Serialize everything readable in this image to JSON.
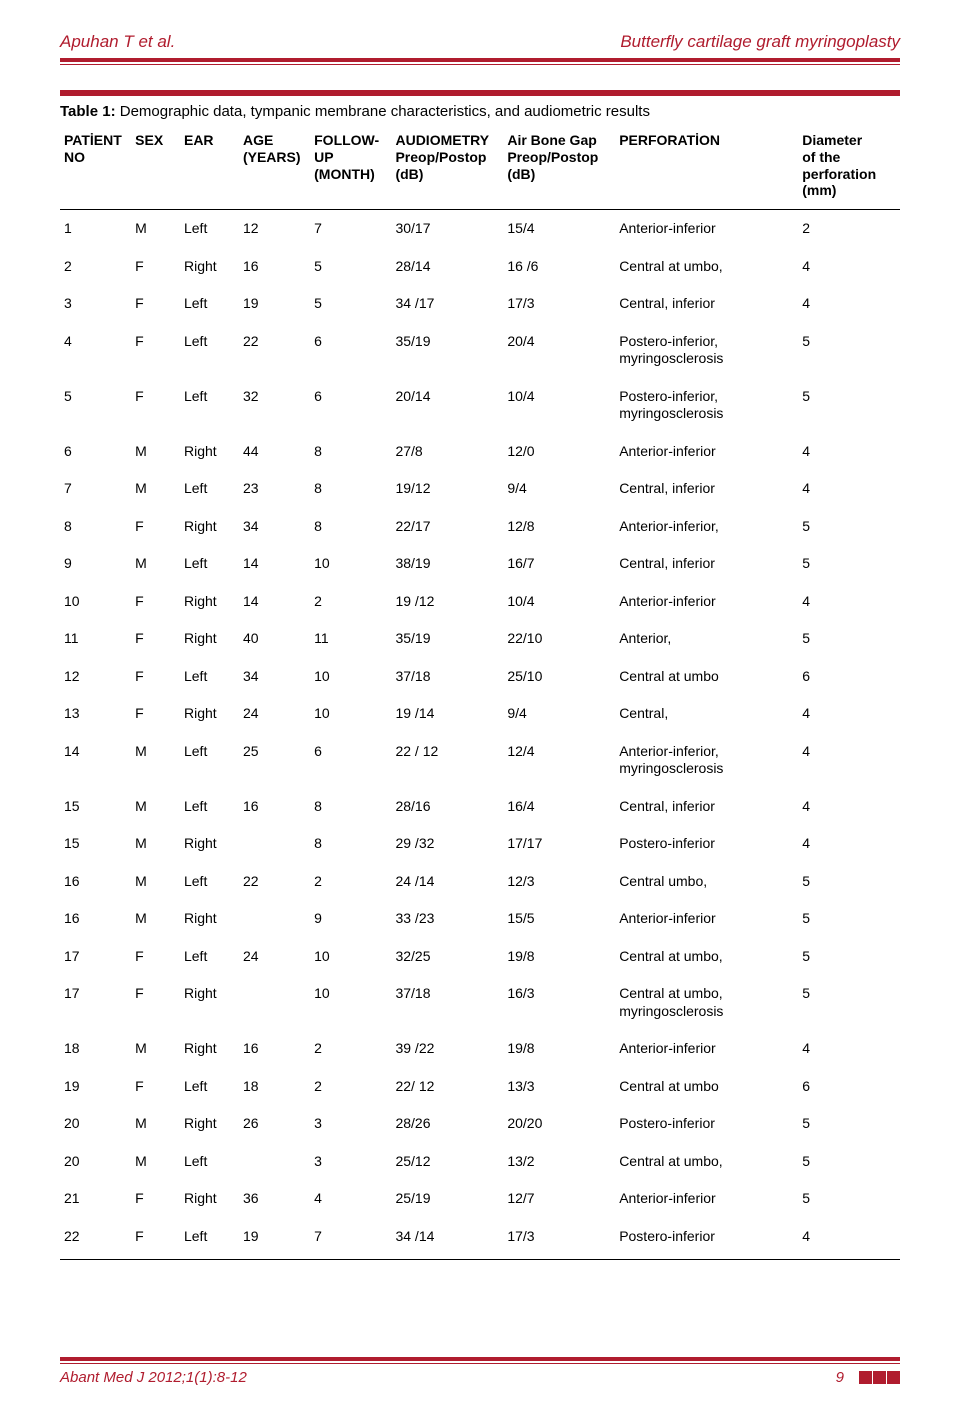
{
  "colors": {
    "accent": "#b01c2e",
    "text": "#000000",
    "background": "#ffffff"
  },
  "running_head": {
    "left": "Apuhan T et al.",
    "right": "Butterfly cartilage graft myringoplasty"
  },
  "table": {
    "caption_bold": "Table 1:",
    "caption_rest": " Demographic data, tympanic membrane characteristics, and audiometric results",
    "columns": [
      {
        "key": "no",
        "label": "PATİENT\nNO"
      },
      {
        "key": "sex",
        "label": "SEX"
      },
      {
        "key": "ear",
        "label": "EAR"
      },
      {
        "key": "age",
        "label": "AGE\n(YEARS)"
      },
      {
        "key": "fu",
        "label": "FOLLOW-\nUP\n(MONTH)"
      },
      {
        "key": "aud",
        "label": "AUDIOMETRY\nPreop/Postop\n(dB)"
      },
      {
        "key": "abg",
        "label": "Air Bone Gap\nPreop/Postop\n(dB)"
      },
      {
        "key": "perf",
        "label": "PERFORATİON"
      },
      {
        "key": "dia",
        "label": "Diameter\nof the\nperforation\n(mm)"
      }
    ],
    "rows": [
      {
        "no": "1",
        "sex": "M",
        "ear": "Left",
        "age": "12",
        "fu": "7",
        "aud": "30/17",
        "abg": "15/4",
        "perf": "Anterior-inferior",
        "dia": "2"
      },
      {
        "no": "2",
        "sex": "F",
        "ear": "Right",
        "age": "16",
        "fu": "5",
        "aud": "28/14",
        "abg": "16 /6",
        "perf": "Central at umbo,",
        "dia": "4"
      },
      {
        "no": "3",
        "sex": "F",
        "ear": "Left",
        "age": "19",
        "fu": "5",
        "aud": "34 /17",
        "abg": "17/3",
        "perf": "Central, inferior",
        "dia": "4"
      },
      {
        "no": "4",
        "sex": "F",
        "ear": "Left",
        "age": "22",
        "fu": "6",
        "aud": "35/19",
        "abg": "20/4",
        "perf": "Postero-inferior,\nmyringosclerosis",
        "dia": "5"
      },
      {
        "no": "5",
        "sex": "F",
        "ear": "Left",
        "age": "32",
        "fu": "6",
        "aud": "20/14",
        "abg": "10/4",
        "perf": "Postero-inferior,\nmyringosclerosis",
        "dia": "5"
      },
      {
        "no": "6",
        "sex": "M",
        "ear": "Right",
        "age": "44",
        "fu": "8",
        "aud": "27/8",
        "abg": "12/0",
        "perf": "Anterior-inferior",
        "dia": "4"
      },
      {
        "no": "7",
        "sex": "M",
        "ear": "Left",
        "age": "23",
        "fu": "8",
        "aud": "19/12",
        "abg": "9/4",
        "perf": "Central, inferior",
        "dia": "4"
      },
      {
        "no": "8",
        "sex": "F",
        "ear": "Right",
        "age": "34",
        "fu": "8",
        "aud": "22/17",
        "abg": "12/8",
        "perf": "Anterior-inferior,",
        "dia": "5"
      },
      {
        "no": "9",
        "sex": "M",
        "ear": "Left",
        "age": "14",
        "fu": "10",
        "aud": "38/19",
        "abg": "16/7",
        "perf": "Central, inferior",
        "dia": "5"
      },
      {
        "no": "10",
        "sex": "F",
        "ear": "Right",
        "age": "14",
        "fu": "2",
        "aud": "19 /12",
        "abg": "10/4",
        "perf": "Anterior-inferior",
        "dia": "4"
      },
      {
        "no": "11",
        "sex": "F",
        "ear": "Right",
        "age": "40",
        "fu": "11",
        "aud": "35/19",
        "abg": "22/10",
        "perf": "Anterior,",
        "dia": "5"
      },
      {
        "no": "12",
        "sex": "F",
        "ear": "Left",
        "age": "34",
        "fu": "10",
        "aud": "37/18",
        "abg": "25/10",
        "perf": "Central at umbo",
        "dia": "6"
      },
      {
        "no": "13",
        "sex": "F",
        "ear": "Right",
        "age": "24",
        "fu": "10",
        "aud": "19 /14",
        "abg": "9/4",
        "perf": "Central,",
        "dia": "4"
      },
      {
        "no": "14",
        "sex": "M",
        "ear": "Left",
        "age": "25",
        "fu": "6",
        "aud": "22 / 12",
        "abg": "12/4",
        "perf": "Anterior-inferior,\nmyringosclerosis",
        "dia": "4"
      },
      {
        "no": "15",
        "sex": "M",
        "ear": "Left",
        "age": "16",
        "fu": "8",
        "aud": "28/16",
        "abg": "16/4",
        "perf": "Central, inferior",
        "dia": "4"
      },
      {
        "no": "15",
        "sex": "M",
        "ear": "Right",
        "age": "",
        "fu": "8",
        "aud": "29 /32",
        "abg": "17/17",
        "perf": "Postero-inferior",
        "dia": "4"
      },
      {
        "no": "16",
        "sex": "M",
        "ear": "Left",
        "age": "22",
        "fu": "2",
        "aud": "24 /14",
        "abg": "12/3",
        "perf": "Central umbo,",
        "dia": "5"
      },
      {
        "no": "16",
        "sex": "M",
        "ear": "Right",
        "age": "",
        "fu": "9",
        "aud": "33 /23",
        "abg": "15/5",
        "perf": "Anterior-inferior",
        "dia": "5"
      },
      {
        "no": "17",
        "sex": "F",
        "ear": "Left",
        "age": "24",
        "fu": "10",
        "aud": "32/25",
        "abg": "19/8",
        "perf": "Central at umbo,",
        "dia": "5"
      },
      {
        "no": "17",
        "sex": "F",
        "ear": "Right",
        "age": "",
        "fu": "10",
        "aud": "37/18",
        "abg": "16/3",
        "perf": "Central at umbo,\nmyringosclerosis",
        "dia": "5"
      },
      {
        "no": "18",
        "sex": "M",
        "ear": "Right",
        "age": "16",
        "fu": "2",
        "aud": "39 /22",
        "abg": "19/8",
        "perf": "Anterior-inferior",
        "dia": "4"
      },
      {
        "no": "19",
        "sex": "F",
        "ear": "Left",
        "age": "18",
        "fu": "2",
        "aud": "22/ 12",
        "abg": "13/3",
        "perf": "Central at umbo",
        "dia": "6"
      },
      {
        "no": "20",
        "sex": "M",
        "ear": "Right",
        "age": "26",
        "fu": "3",
        "aud": "28/26",
        "abg": "20/20",
        "perf": "Postero-inferior",
        "dia": "5"
      },
      {
        "no": "20",
        "sex": "M",
        "ear": "Left",
        "age": "",
        "fu": "3",
        "aud": "25/12",
        "abg": "13/2",
        "perf": "Central at umbo,",
        "dia": "5"
      },
      {
        "no": "21",
        "sex": "F",
        "ear": "Right",
        "age": "36",
        "fu": "4",
        "aud": "25/19",
        "abg": "12/7",
        "perf": "Anterior-inferior",
        "dia": "5"
      },
      {
        "no": "22",
        "sex": "F",
        "ear": "Left",
        "age": "19",
        "fu": "7",
        "aud": "34 /14",
        "abg": "17/3",
        "perf": "Postero-inferior",
        "dia": "4"
      }
    ]
  },
  "footer": {
    "citation": "Abant Med J 2012;1(1):8-12",
    "page": "9"
  }
}
